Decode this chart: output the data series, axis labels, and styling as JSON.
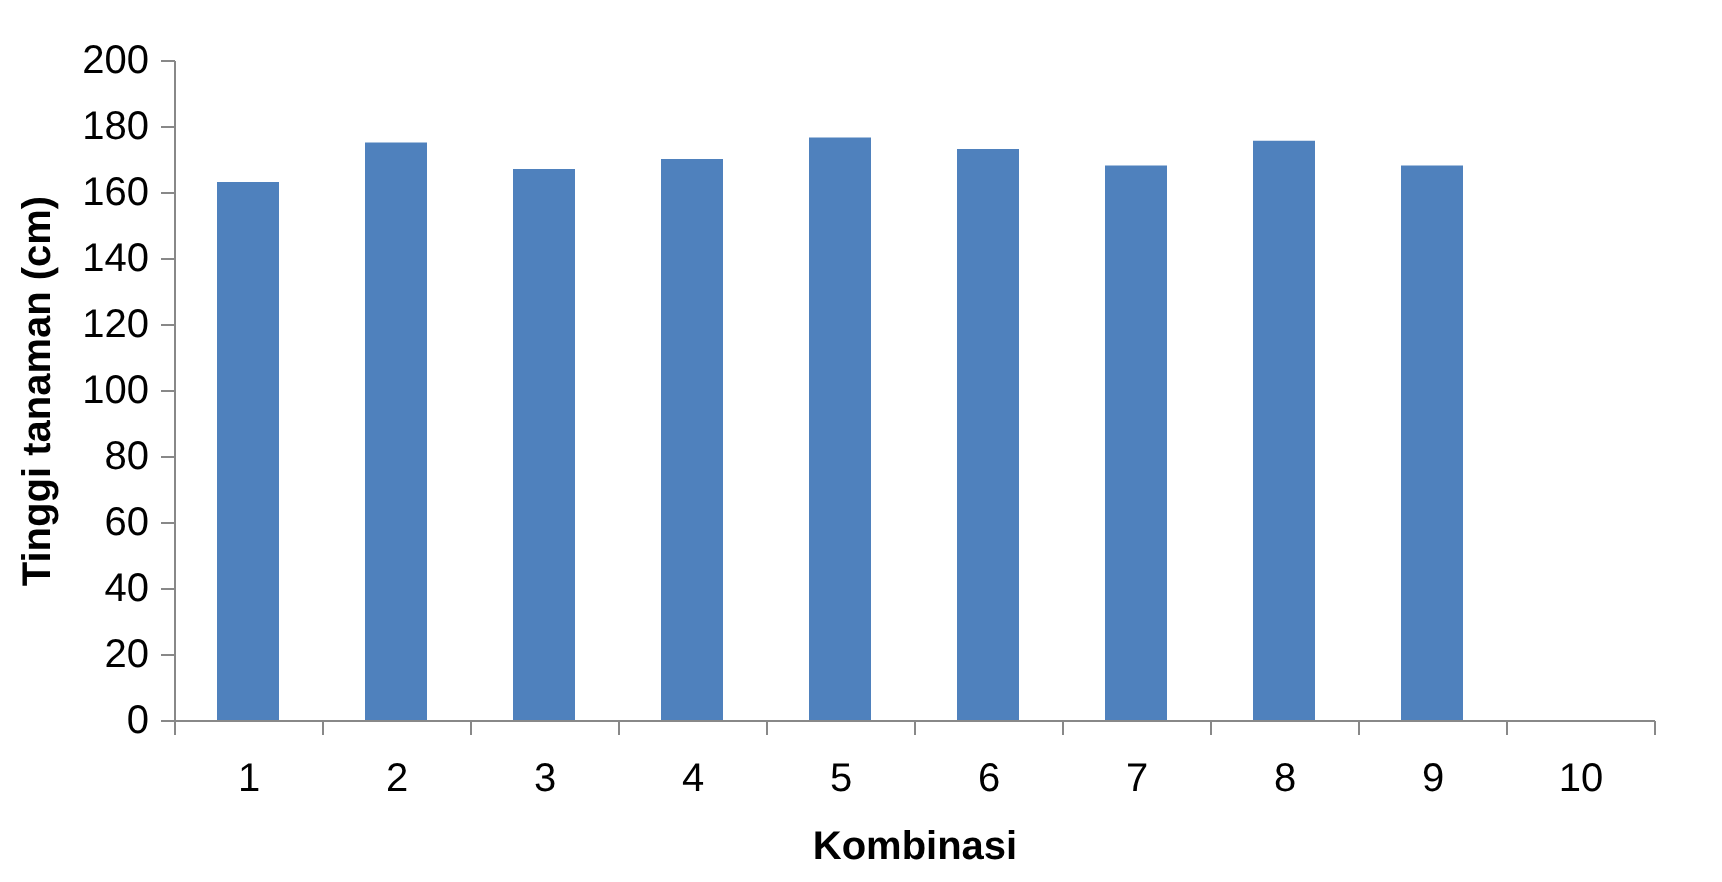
{
  "chart_data": {
    "type": "bar",
    "xlabel": "Kombinasi",
    "ylabel": "Tinggi tanaman (cm)",
    "categories": [
      "1",
      "2",
      "3",
      "4",
      "5",
      "6",
      "7",
      "8",
      "9",
      "10"
    ],
    "values": [
      163,
      175,
      167,
      170,
      176.5,
      173,
      168,
      175.5,
      168,
      null
    ],
    "color": "#4f81bd",
    "ylim": [
      0,
      200
    ],
    "yticks": [
      0,
      20,
      40,
      60,
      80,
      100,
      120,
      140,
      160,
      180,
      200
    ],
    "grid": false
  }
}
